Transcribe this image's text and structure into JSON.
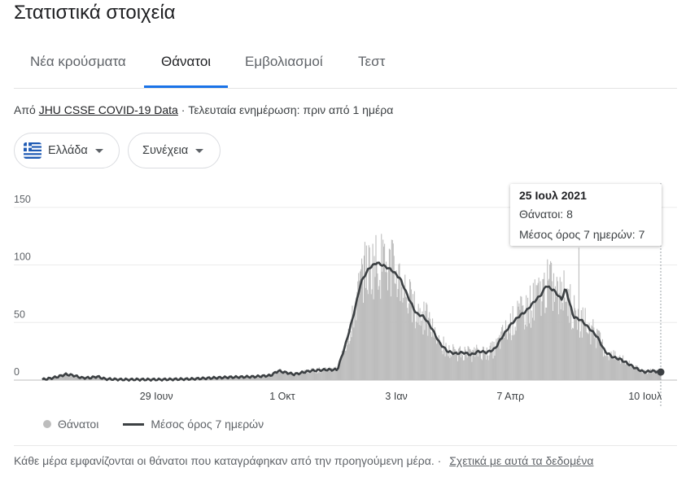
{
  "page": {
    "title": "Στατιστικά στοιχεία"
  },
  "tabs": [
    {
      "label": "Νέα κρούσματα",
      "active": false
    },
    {
      "label": "Θάνατοι",
      "active": true
    },
    {
      "label": "Εμβολιασμοί",
      "active": false
    },
    {
      "label": "Τεστ",
      "active": false
    }
  ],
  "source": {
    "prefix": "Από",
    "link": "JHU CSSE COVID-19 Data",
    "suffix": "· Τελευταία ενημέρωση: πριν από 1 ημέρα"
  },
  "filters": {
    "country": {
      "label": "Ελλάδα",
      "icon": "greece-flag-icon"
    },
    "period": {
      "label": "Συνέχεια"
    }
  },
  "tooltip": {
    "date": "25 Ιουλ 2021",
    "deaths": "Θάνατοι: 8",
    "avg": "Μέσος όρος 7 ημερών: 7"
  },
  "legend": {
    "bars": "Θάνατοι",
    "line": "Μέσος όρος 7 ημερών"
  },
  "footer": {
    "note": "Κάθε μέρα εμφανίζονται οι θάνατοι που καταγράφηκαν από την προηγούμενη μέρα.  ·",
    "link": "Σχετικά με αυτά τα δεδομένα"
  },
  "chart_data": {
    "type": "bar",
    "y_ticks": [
      0,
      50,
      100,
      150
    ],
    "ylim": [
      0,
      160
    ],
    "x_ticks": [
      "29 Ιουν",
      "1 Οκτ",
      "3 Ιαν",
      "7 Απρ",
      "10 Ιουλ"
    ],
    "grid": true,
    "series": [
      {
        "name": "Θάνατοι",
        "kind": "bar",
        "color": "#bdbdbd"
      },
      {
        "name": "Μέσος όρος 7 ημερών",
        "kind": "line",
        "color": "#3c4043"
      }
    ],
    "avg_keyframes": [
      [
        0,
        0.5
      ],
      [
        10,
        1.5
      ],
      [
        20,
        3
      ],
      [
        30,
        5
      ],
      [
        40,
        4
      ],
      [
        50,
        2
      ],
      [
        60,
        2
      ],
      [
        70,
        3
      ],
      [
        80,
        1
      ],
      [
        100,
        0.5
      ],
      [
        150,
        0.5
      ],
      [
        190,
        1
      ],
      [
        220,
        2
      ],
      [
        240,
        2.5
      ],
      [
        270,
        3
      ],
      [
        290,
        4
      ],
      [
        300,
        8
      ],
      [
        320,
        5
      ],
      [
        340,
        8
      ],
      [
        360,
        9
      ],
      [
        375,
        9
      ],
      [
        385,
        30
      ],
      [
        395,
        55
      ],
      [
        405,
        85
      ],
      [
        415,
        97
      ],
      [
        425,
        102
      ],
      [
        435,
        99
      ],
      [
        445,
        95
      ],
      [
        455,
        88
      ],
      [
        465,
        72
      ],
      [
        475,
        58
      ],
      [
        485,
        55
      ],
      [
        495,
        45
      ],
      [
        505,
        32
      ],
      [
        515,
        25
      ],
      [
        525,
        23
      ],
      [
        535,
        24
      ],
      [
        545,
        22
      ],
      [
        555,
        25
      ],
      [
        565,
        24
      ],
      [
        575,
        27
      ],
      [
        585,
        38
      ],
      [
        595,
        48
      ],
      [
        605,
        55
      ],
      [
        615,
        60
      ],
      [
        625,
        68
      ],
      [
        635,
        75
      ],
      [
        640,
        82
      ],
      [
        650,
        78
      ],
      [
        660,
        70
      ],
      [
        665,
        80
      ],
      [
        675,
        55
      ],
      [
        685,
        52
      ],
      [
        695,
        45
      ],
      [
        705,
        38
      ],
      [
        715,
        25
      ],
      [
        725,
        20
      ],
      [
        735,
        18
      ],
      [
        745,
        14
      ],
      [
        755,
        10
      ],
      [
        765,
        7
      ],
      [
        775,
        8
      ],
      [
        786,
        7
      ]
    ],
    "tooltip_day": 786
  }
}
